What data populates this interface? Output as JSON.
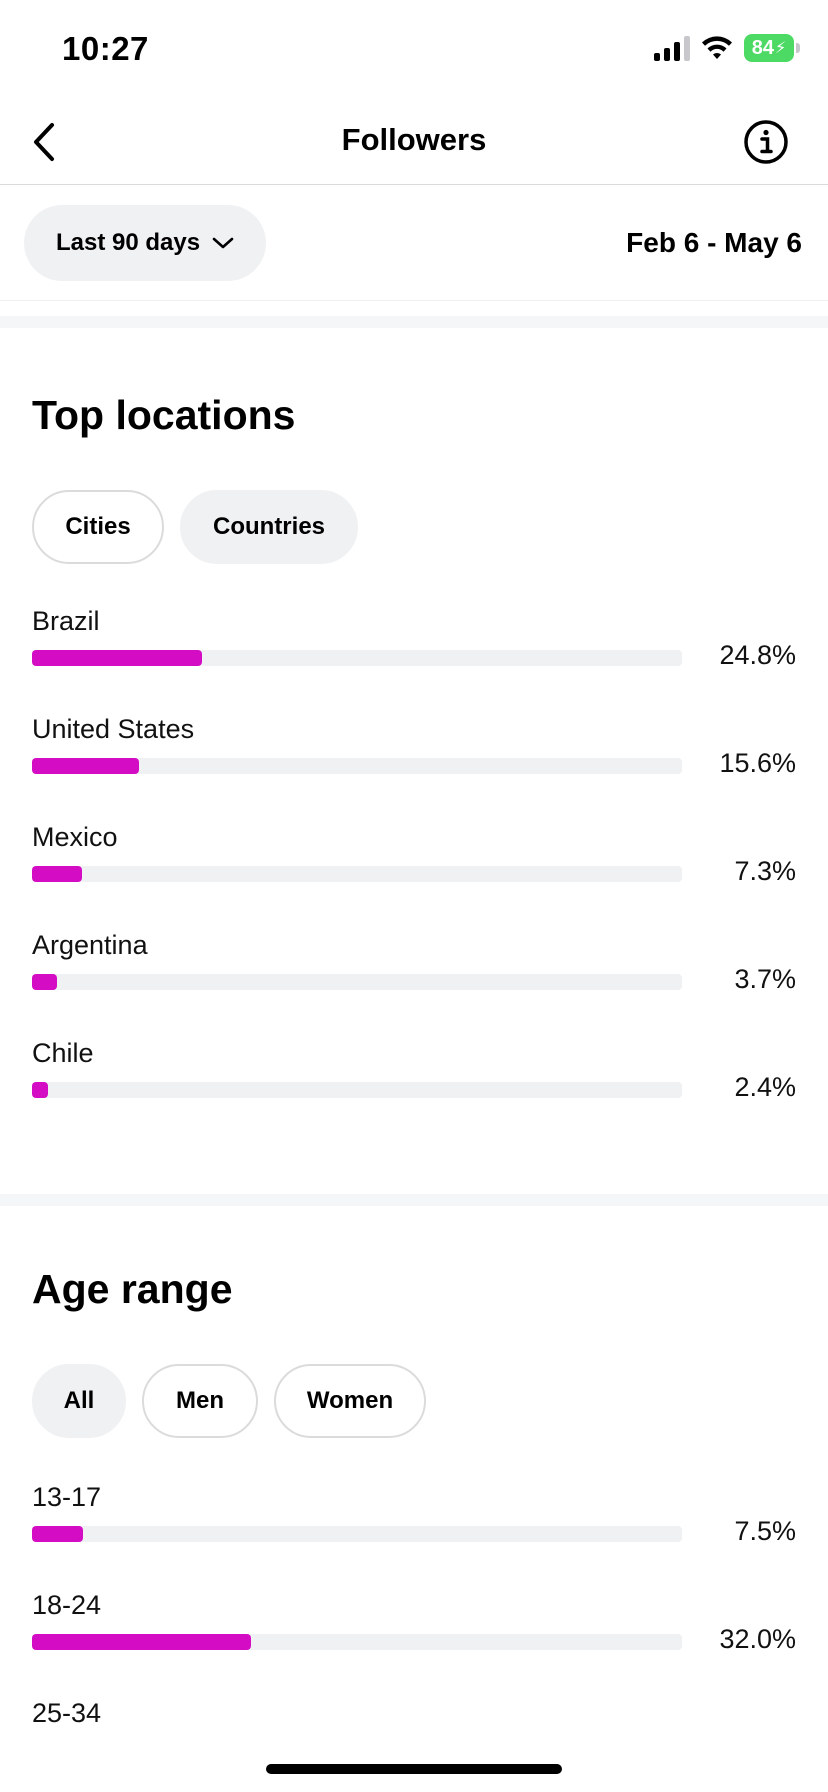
{
  "status_bar": {
    "time": "10:27",
    "battery_level": "84",
    "icons": [
      "signal-icon",
      "wifi-icon",
      "battery-icon"
    ]
  },
  "header": {
    "title": "Followers",
    "back_icon": "chevron-left-icon",
    "info_icon": "info-icon"
  },
  "filters": {
    "range_label": "Last 90 days",
    "date_range": "Feb 6 - May 6"
  },
  "top_locations": {
    "title": "Top locations",
    "tabs": [
      {
        "label": "Cities",
        "selected": false
      },
      {
        "label": "Countries",
        "selected": true
      }
    ],
    "rows": [
      {
        "label": "Brazil",
        "value": "24.8%",
        "fraction": 0.248
      },
      {
        "label": "United States",
        "value": "15.6%",
        "fraction": 0.156
      },
      {
        "label": "Mexico",
        "value": "7.3%",
        "fraction": 0.073
      },
      {
        "label": "Argentina",
        "value": "3.7%",
        "fraction": 0.037
      },
      {
        "label": "Chile",
        "value": "2.4%",
        "fraction": 0.024
      }
    ]
  },
  "age_range": {
    "title": "Age range",
    "tabs": [
      {
        "label": "All",
        "selected": true
      },
      {
        "label": "Men",
        "selected": false
      },
      {
        "label": "Women",
        "selected": false
      }
    ],
    "rows": [
      {
        "label": "13-17",
        "value": "7.5%",
        "fraction": 0.075
      },
      {
        "label": "18-24",
        "value": "32.0%",
        "fraction": 0.32
      },
      {
        "label": "25-34",
        "value": null,
        "fraction": null
      }
    ]
  },
  "colors": {
    "accent": "#d40dc5",
    "track": "#f0f1f3"
  }
}
